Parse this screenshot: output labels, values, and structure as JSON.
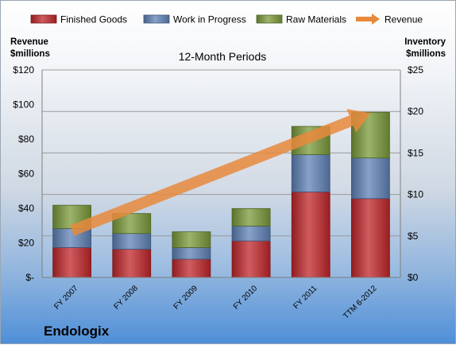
{
  "chart_data": {
    "type": "bar",
    "stacked": true,
    "title": "12-Month Periods",
    "company": "Endologix",
    "categories": [
      "FY 2007",
      "FY 2008",
      "FY 2009",
      "FY 2010",
      "FY 2011",
      "TTM 6-2012"
    ],
    "series": [
      {
        "name": "Finished Goods",
        "axis": "right",
        "color": "#c0262a",
        "values": [
          3.6,
          3.4,
          2.2,
          4.4,
          10.3,
          9.5
        ]
      },
      {
        "name": "Work in Progress",
        "axis": "right",
        "color": "#5f82b7",
        "values": [
          2.3,
          1.9,
          1.4,
          1.8,
          4.5,
          4.9
        ]
      },
      {
        "name": "Raw Materials",
        "axis": "right",
        "color": "#7a9a3a",
        "values": [
          2.8,
          2.4,
          1.9,
          2.1,
          3.4,
          5.5
        ]
      },
      {
        "name": "Revenue",
        "axis": "left",
        "color": "#e8893c",
        "type": "arrow",
        "values": [
          27,
          36,
          47,
          58,
          79,
          95
        ]
      }
    ],
    "y_left": {
      "label_line1": "Revenue",
      "label_line2": "$millions",
      "ylim": [
        0,
        120
      ],
      "ticks": [
        "$-",
        "$20",
        "$40",
        "$60",
        "$80",
        "$100",
        "$120"
      ]
    },
    "y_right": {
      "label_line1": "Inventory",
      "label_line2": "$millions",
      "ylim": [
        0,
        25
      ],
      "ticks": [
        "$0",
        "$5",
        "$10",
        "$15",
        "$20",
        "$25"
      ]
    },
    "grid": true,
    "legend_position": "top"
  }
}
